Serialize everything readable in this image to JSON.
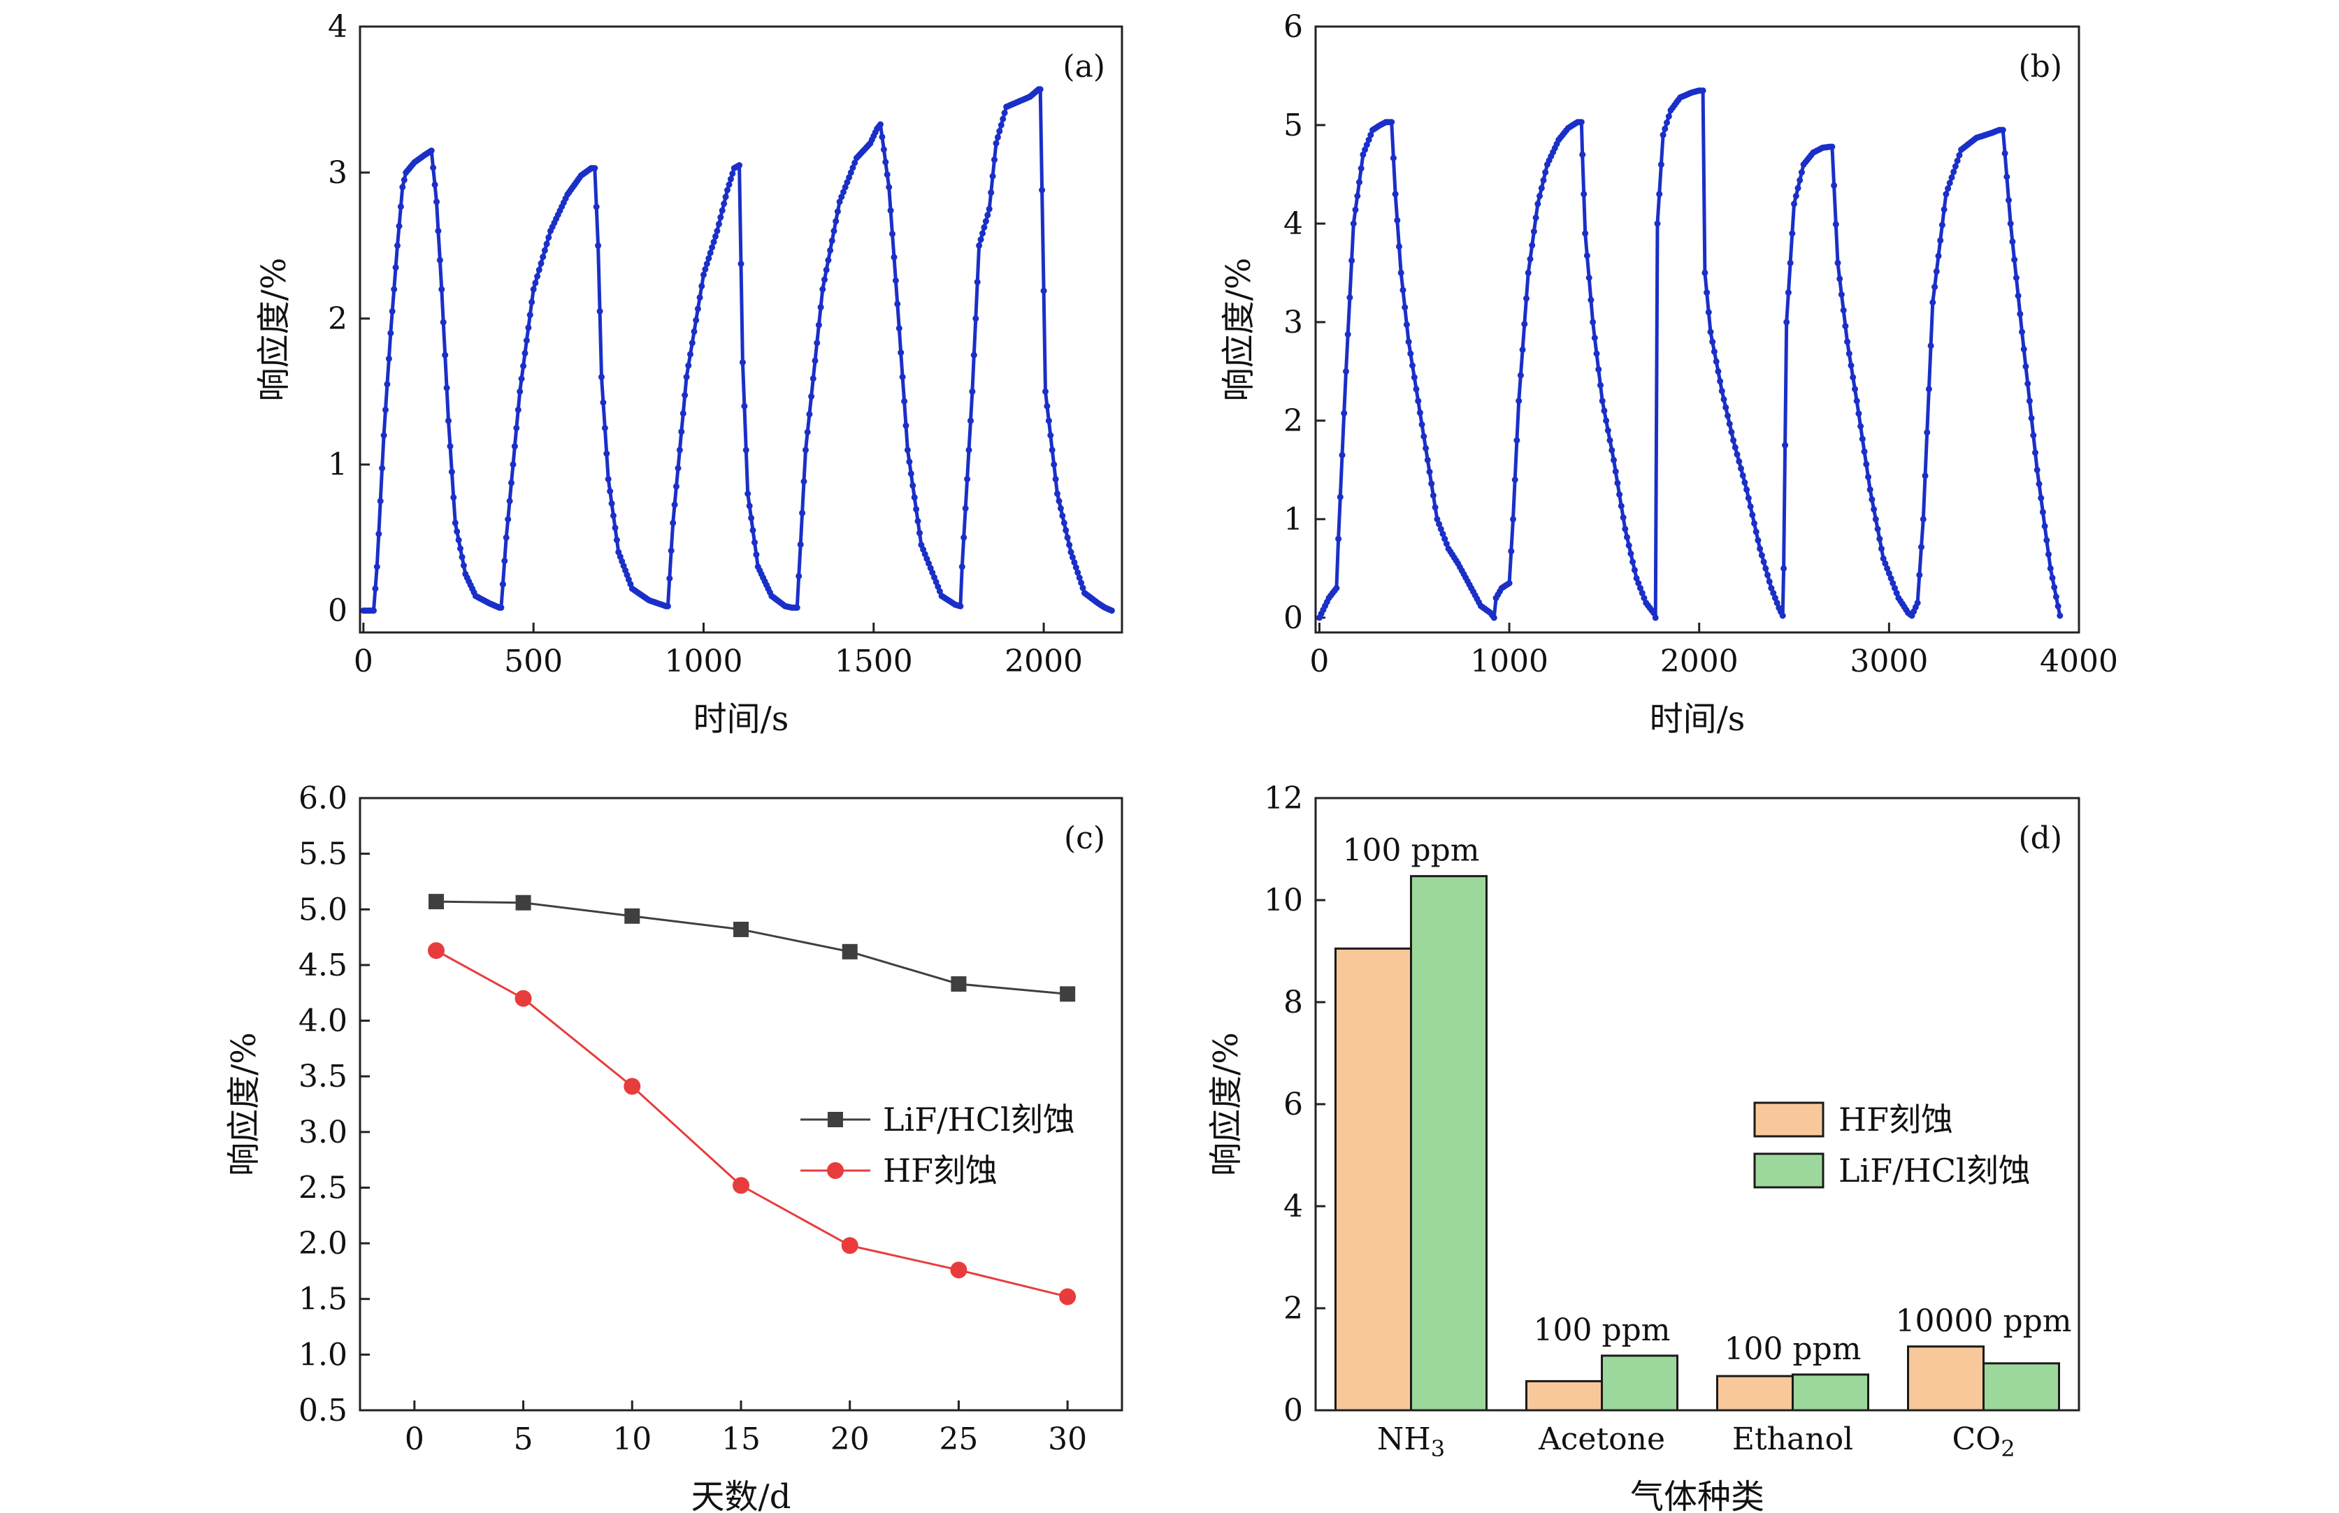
{
  "colors": {
    "blue": "#1a2fc8",
    "gray": "#3f3f3f",
    "red": "#e83c3c",
    "orange": "#f8c89a",
    "green": "#9cd89b",
    "axis": "#222222"
  },
  "chart_data": [
    {
      "id": "a",
      "type": "line",
      "panel_label": "(a)",
      "xlabel": "时间/s",
      "ylabel": "响应度/%",
      "xlim": [
        -10,
        2230
      ],
      "ylim": [
        -0.15,
        4
      ],
      "xticks": [
        0,
        500,
        1000,
        1500,
        2000
      ],
      "yticks": [
        0,
        1,
        2,
        3,
        4
      ],
      "xtick_labels": [
        "0",
        "500",
        "1000",
        "1500",
        "2000"
      ],
      "ytick_labels": [
        "0",
        "1",
        "2",
        "3",
        "4"
      ],
      "series": [
        {
          "name": "response",
          "color": "#1a2fc8",
          "x": [
            0,
            30,
            40,
            60,
            80,
            100,
            115,
            125,
            150,
            180,
            200,
            215,
            230,
            250,
            270,
            300,
            330,
            370,
            400,
            405,
            420,
            460,
            500,
            550,
            600,
            640,
            670,
            680,
            690,
            700,
            720,
            750,
            790,
            840,
            890,
            895,
            910,
            950,
            1000,
            1040,
            1070,
            1090,
            1105,
            1115,
            1130,
            1160,
            1200,
            1240,
            1260,
            1275,
            1300,
            1350,
            1400,
            1450,
            1490,
            1510,
            1520,
            1545,
            1570,
            1600,
            1640,
            1700,
            1740,
            1755,
            1760,
            1790,
            1810,
            1840,
            1860,
            1890,
            1920,
            1960,
            1985,
            1990,
            2005,
            2040,
            2080,
            2120,
            2160,
            2180,
            2200
          ],
          "y": [
            0.0,
            0.0,
            0.3,
            1.2,
            1.9,
            2.5,
            2.9,
            3.0,
            3.07,
            3.12,
            3.15,
            2.8,
            2.2,
            1.3,
            0.6,
            0.25,
            0.1,
            0.05,
            0.02,
            0.02,
            0.5,
            1.5,
            2.2,
            2.6,
            2.85,
            2.98,
            3.03,
            3.03,
            2.5,
            1.6,
            0.9,
            0.4,
            0.15,
            0.07,
            0.03,
            0.03,
            0.6,
            1.6,
            2.3,
            2.6,
            2.88,
            3.03,
            3.05,
            1.7,
            0.8,
            0.3,
            0.1,
            0.03,
            0.02,
            0.02,
            1.1,
            2.2,
            2.8,
            3.1,
            3.2,
            3.3,
            3.33,
            2.9,
            2.1,
            1.1,
            0.45,
            0.1,
            0.04,
            0.03,
            0.3,
            1.5,
            2.5,
            2.75,
            3.2,
            3.45,
            3.48,
            3.52,
            3.57,
            3.57,
            1.5,
            0.8,
            0.4,
            0.12,
            0.05,
            0.02,
            0.0
          ]
        }
      ]
    },
    {
      "id": "b",
      "type": "line",
      "panel_label": "(b)",
      "xlabel": "时间/s",
      "ylabel": "响应度/%",
      "xlim": [
        -20,
        4000
      ],
      "ylim": [
        -0.15,
        6
      ],
      "xticks": [
        0,
        1000,
        2000,
        3000,
        4000
      ],
      "yticks": [
        0,
        1,
        2,
        3,
        4,
        5,
        6
      ],
      "xtick_labels": [
        "0",
        "1000",
        "2000",
        "3000",
        "4000"
      ],
      "ytick_labels": [
        "0",
        "1",
        "2",
        "3",
        "4",
        "5",
        "6"
      ],
      "series": [
        {
          "name": "response",
          "color": "#1a2fc8",
          "x": [
            0,
            50,
            90,
            100,
            140,
            180,
            230,
            280,
            320,
            350,
            380,
            400,
            430,
            470,
            520,
            570,
            620,
            680,
            730,
            800,
            850,
            900,
            920,
            930,
            960,
            1000,
            1020,
            1050,
            1100,
            1150,
            1200,
            1260,
            1310,
            1360,
            1380,
            1385,
            1400,
            1440,
            1490,
            1550,
            1610,
            1670,
            1720,
            1760,
            1770,
            1780,
            1810,
            1850,
            1900,
            1960,
            2000,
            2020,
            2030,
            2060,
            2120,
            2180,
            2250,
            2320,
            2380,
            2420,
            2440,
            2445,
            2460,
            2500,
            2550,
            2600,
            2650,
            2690,
            2700,
            2730,
            2780,
            2830,
            2900,
            2970,
            3050,
            3100,
            3120,
            3150,
            3180,
            3230,
            3300,
            3380,
            3460,
            3540,
            3580,
            3600,
            3640,
            3700,
            3780,
            3850,
            3900
          ],
          "y": [
            0.0,
            0.2,
            0.3,
            0.8,
            2.5,
            4.0,
            4.7,
            4.95,
            5.0,
            5.03,
            5.03,
            4.3,
            3.5,
            2.8,
            2.2,
            1.6,
            1.0,
            0.7,
            0.55,
            0.3,
            0.12,
            0.05,
            0.0,
            0.2,
            0.3,
            0.35,
            1.0,
            2.2,
            3.5,
            4.2,
            4.6,
            4.85,
            4.97,
            5.03,
            5.03,
            4.7,
            3.9,
            3.0,
            2.2,
            1.6,
            0.9,
            0.4,
            0.15,
            0.05,
            0.0,
            4.0,
            4.9,
            5.15,
            5.28,
            5.33,
            5.35,
            5.35,
            3.5,
            2.9,
            2.3,
            1.8,
            1.3,
            0.7,
            0.3,
            0.1,
            0.02,
            0.5,
            3.0,
            4.2,
            4.6,
            4.72,
            4.77,
            4.78,
            4.78,
            3.6,
            2.8,
            2.2,
            1.3,
            0.6,
            0.2,
            0.05,
            0.02,
            0.15,
            1.0,
            3.2,
            4.3,
            4.75,
            4.87,
            4.92,
            4.95,
            4.95,
            4.0,
            2.9,
            1.5,
            0.5,
            0.02
          ]
        }
      ]
    },
    {
      "id": "c",
      "type": "line",
      "panel_label": "(c)",
      "xlabel": "天数/d",
      "ylabel": "响应度/%",
      "xlim": [
        -2.5,
        32.5
      ],
      "ylim": [
        0.5,
        6.0
      ],
      "xticks": [
        0,
        5,
        10,
        15,
        20,
        25,
        30
      ],
      "yticks": [
        0.5,
        1.0,
        1.5,
        2.0,
        2.5,
        3.0,
        3.5,
        4.0,
        4.5,
        5.0,
        5.5,
        6.0
      ],
      "xtick_labels": [
        "0",
        "5",
        "10",
        "15",
        "20",
        "25",
        "30"
      ],
      "ytick_labels": [
        "0.5",
        "1.0",
        "1.5",
        "2.0",
        "2.5",
        "3.0",
        "3.5",
        "4.0",
        "4.5",
        "5.0",
        "5.5",
        "6.0"
      ],
      "legend_position": "center-right",
      "series": [
        {
          "name": "LiF/HCl刻蚀",
          "marker": "square",
          "color": "#3f3f3f",
          "x": [
            1,
            5,
            10,
            15,
            20,
            25,
            30
          ],
          "y": [
            5.07,
            5.06,
            4.94,
            4.82,
            4.62,
            4.33,
            4.24
          ]
        },
        {
          "name": "HF刻蚀",
          "marker": "circle",
          "color": "#e83c3c",
          "x": [
            1,
            5,
            10,
            15,
            20,
            25,
            30
          ],
          "y": [
            4.63,
            4.2,
            3.41,
            2.52,
            1.98,
            1.76,
            1.52
          ]
        }
      ]
    },
    {
      "id": "d",
      "type": "bar",
      "panel_label": "(d)",
      "xlabel": "气体种类",
      "ylabel": "响应度/%",
      "ylim": [
        0,
        12
      ],
      "yticks": [
        0,
        2,
        4,
        6,
        8,
        10,
        12
      ],
      "ytick_labels": [
        "0",
        "2",
        "4",
        "6",
        "8",
        "10",
        "12"
      ],
      "categories": [
        "NH3",
        "Acetone",
        "Ethanol",
        "CO2"
      ],
      "category_labels": [
        {
          "main": "NH",
          "sub": "3"
        },
        {
          "main": "Acetone",
          "sub": ""
        },
        {
          "main": "Ethanol",
          "sub": ""
        },
        {
          "main": "CO",
          "sub": "2"
        }
      ],
      "annotations": [
        "100 ppm",
        "100 ppm",
        "100 ppm",
        "10000 ppm"
      ],
      "legend_position": "center-right",
      "series": [
        {
          "name": "HF刻蚀",
          "color": "#f8c89a",
          "values": [
            9.05,
            0.57,
            0.67,
            1.25
          ]
        },
        {
          "name": "LiF/HCl刻蚀",
          "color": "#9cd89b",
          "values": [
            10.47,
            1.07,
            0.7,
            0.92
          ]
        }
      ]
    }
  ]
}
